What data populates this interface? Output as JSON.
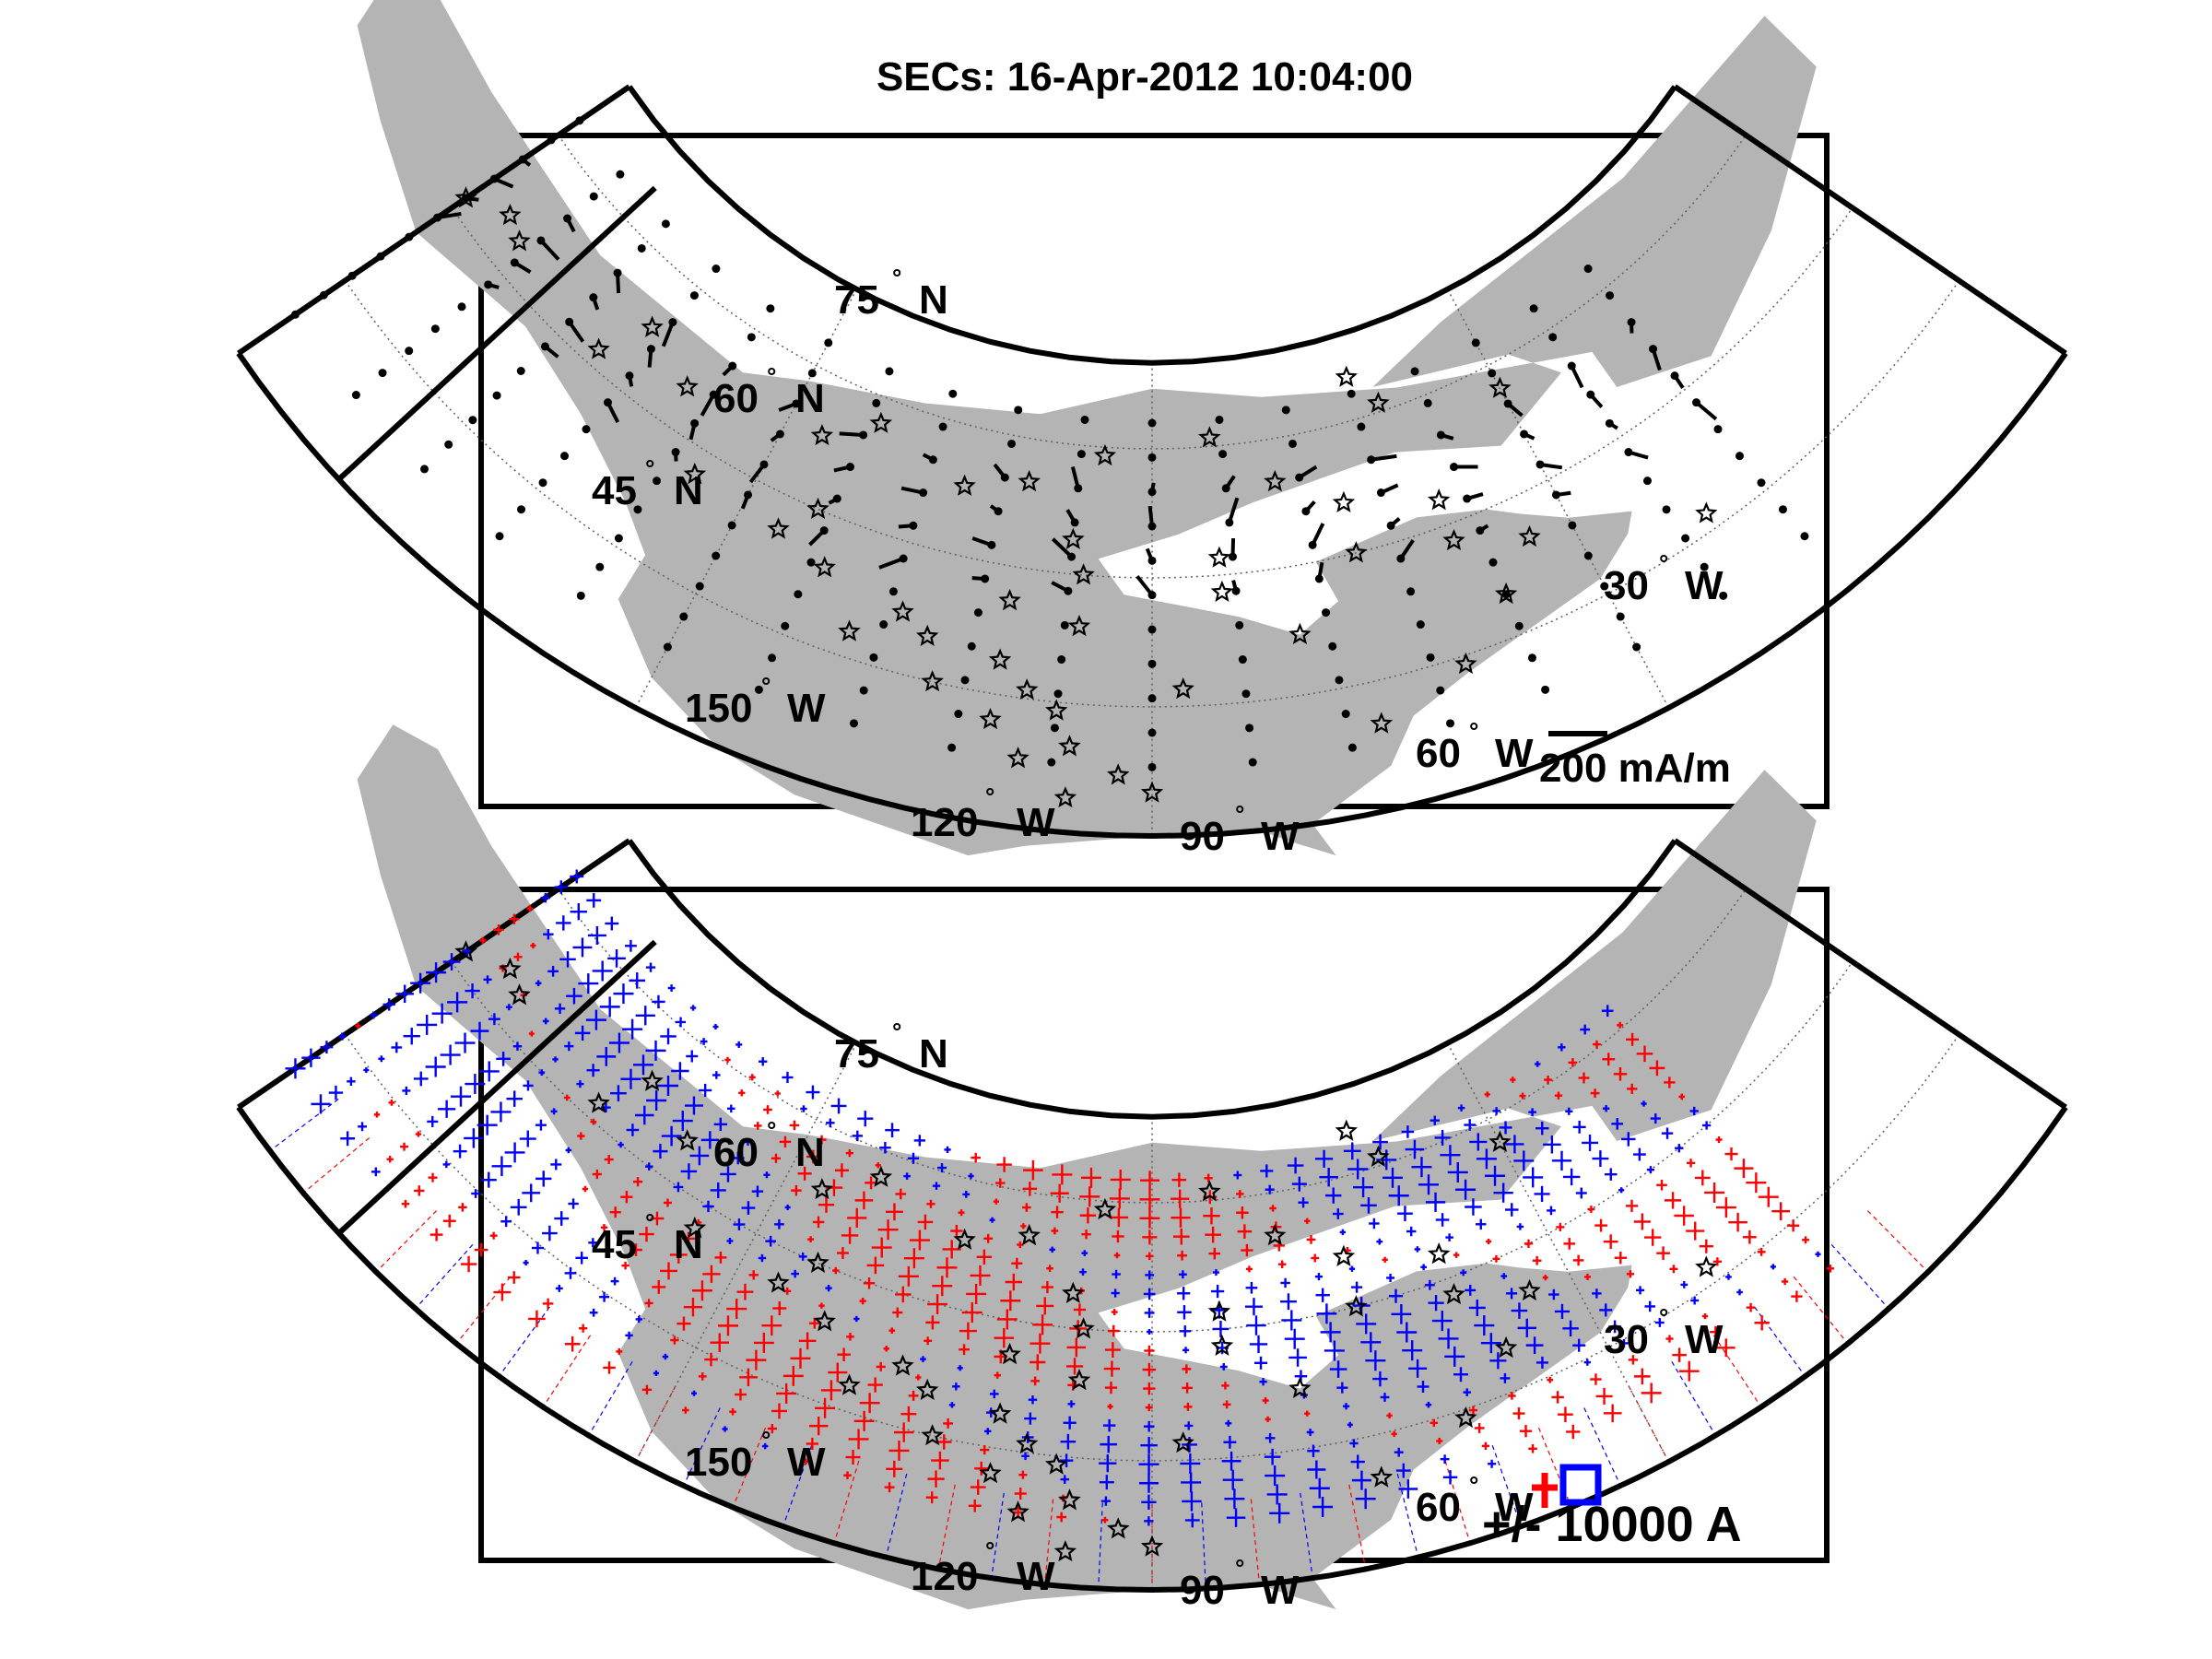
{
  "title": "SECs: 16-Apr-2012 10:04:00",
  "colors": {
    "land": "#b4b4b4",
    "positive": "#ff0000",
    "negative": "#0000ff",
    "station": "#000000",
    "graticule": "#606060"
  },
  "panels": [
    {
      "id": "currents",
      "lat_labels": [
        {
          "deg": "75",
          "hemi": "N"
        },
        {
          "deg": "60",
          "hemi": "N"
        },
        {
          "deg": "45",
          "hemi": "N"
        }
      ],
      "lon_labels": [
        {
          "deg": "150",
          "hemi": "W"
        },
        {
          "deg": "120",
          "hemi": "W"
        },
        {
          "deg": "90",
          "hemi": "W"
        },
        {
          "deg": "60",
          "hemi": "W"
        },
        {
          "deg": "30",
          "hemi": "W"
        }
      ],
      "scale_label": "200 mA/m"
    },
    {
      "id": "amplitudes",
      "lat_labels": [
        {
          "deg": "75",
          "hemi": "N"
        },
        {
          "deg": "60",
          "hemi": "N"
        },
        {
          "deg": "45",
          "hemi": "N"
        }
      ],
      "lon_labels": [
        {
          "deg": "150",
          "hemi": "W"
        },
        {
          "deg": "120",
          "hemi": "W"
        },
        {
          "deg": "90",
          "hemi": "W"
        },
        {
          "deg": "60",
          "hemi": "W"
        },
        {
          "deg": "30",
          "hemi": "W"
        }
      ],
      "scale_label": "+/- 10000 A"
    }
  ],
  "degree_symbol": "°"
}
